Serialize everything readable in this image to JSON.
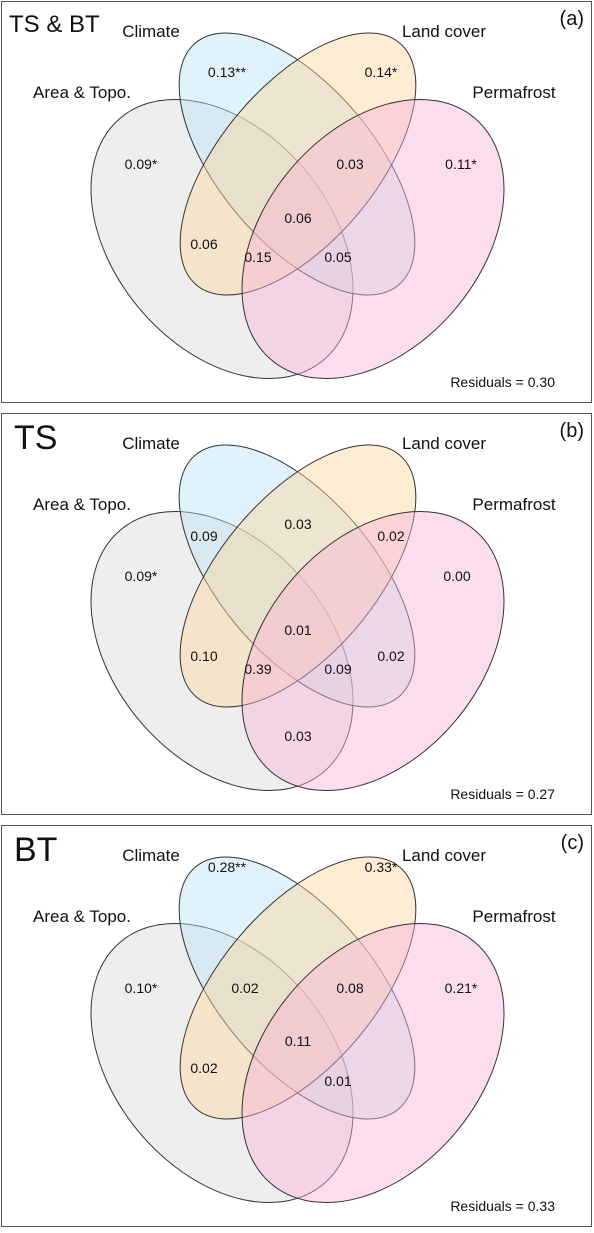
{
  "sets": {
    "area_topo": "Area & Topo.",
    "climate": "Climate",
    "land_cover": "Land cover",
    "permafrost": "Permafrost"
  },
  "colors": {
    "area_topo": "#d9d9d9",
    "climate": "#bfe3f5",
    "land_cover": "#fdd49e",
    "permafrost": "#f9b3d8",
    "stroke": "#333333"
  },
  "panels": [
    {
      "title": "TS & BT",
      "tag": "(a)",
      "residuals": "Residuals = 0.30",
      "values": {
        "area_only": "0.09*",
        "climate_only": "0.13**",
        "land_cover_only": "0.14*",
        "permafrost_only": "0.11*",
        "area_climate": "",
        "climate_land_cover": "",
        "land_cover_permafrost": "0.03",
        "area_land_cover": "0.06",
        "climate_permafrost": "0.05",
        "area_permafrost": "",
        "area_climate_land_cover": "",
        "climate_land_cover_permafrost": "",
        "area_land_cover_permafrost": "0.15",
        "area_climate_permafrost": "",
        "all": "0.06"
      }
    },
    {
      "title": "TS",
      "tag": "(b)",
      "residuals": "Residuals = 0.27",
      "values": {
        "area_only": "0.09*",
        "climate_only": "",
        "land_cover_only": "",
        "permafrost_only": "0.00",
        "area_climate": "0.09",
        "climate_land_cover": "0.03",
        "land_cover_permafrost": "0.02",
        "area_land_cover": "0.10",
        "climate_permafrost": "0.02",
        "area_permafrost": "0.03",
        "area_climate_land_cover": "",
        "climate_land_cover_permafrost": "0.09",
        "area_land_cover_permafrost": "0.39",
        "area_climate_permafrost": "",
        "all": "0.01"
      }
    },
    {
      "title": "BT",
      "tag": "(c)",
      "residuals": "Residuals = 0.33",
      "values": {
        "area_only": "0.10*",
        "climate_only": "0.28**",
        "land_cover_only": "0.33*",
        "permafrost_only": "0.21*",
        "area_climate": "0.02",
        "climate_land_cover": "",
        "land_cover_permafrost": "0.08",
        "area_land_cover": "0.02",
        "climate_permafrost": "0.01",
        "area_permafrost": "",
        "area_climate_land_cover": "",
        "climate_land_cover_permafrost": "",
        "area_land_cover_permafrost": "",
        "area_climate_permafrost": "",
        "all": "0.11"
      }
    }
  ]
}
